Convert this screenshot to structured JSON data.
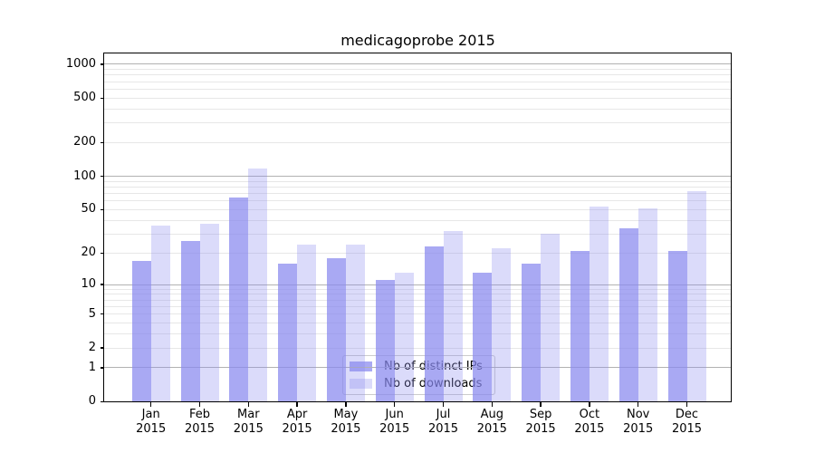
{
  "chart_data": {
    "type": "bar",
    "title": "medicagoprobe 2015",
    "categories": [
      "Jan 2015",
      "Feb 2015",
      "Mar 2015",
      "Apr 2015",
      "May 2015",
      "Jun 2015",
      "Jul 2015",
      "Aug 2015",
      "Sep 2015",
      "Oct 2015",
      "Nov 2015",
      "Dec 2015"
    ],
    "series": [
      {
        "name": "Nb of distinct IPs",
        "key": "distinct-ips",
        "color": "rgba(136,136,238,0.72)",
        "values": [
          17,
          26,
          64,
          16,
          18,
          11,
          23,
          13,
          16,
          21,
          34,
          21
        ]
      },
      {
        "name": "Nb of downloads",
        "key": "downloads",
        "color": "rgba(136,136,238,0.30)",
        "values": [
          36,
          37,
          118,
          24,
          24,
          13,
          32,
          22,
          30,
          53,
          51,
          73
        ]
      }
    ],
    "xlabel": "",
    "ylabel": "",
    "y_scale": "log10(1+y)",
    "y_ticks": [
      0,
      1,
      2,
      5,
      10,
      20,
      50,
      100,
      200,
      500,
      1000
    ],
    "y_major_gridlines": [
      1,
      10,
      100,
      1000
    ],
    "ylim": [
      0,
      1250
    ],
    "grid": "horizontal, major and minor",
    "legend_position": "lower center"
  },
  "colors": {
    "bar_fill_base": "#8888ee",
    "grid_major": "#b2b2b2",
    "grid_minor": "#e7e7e7",
    "axis": "#000000",
    "legend_border": "#cccccc",
    "background": "#ffffff"
  }
}
